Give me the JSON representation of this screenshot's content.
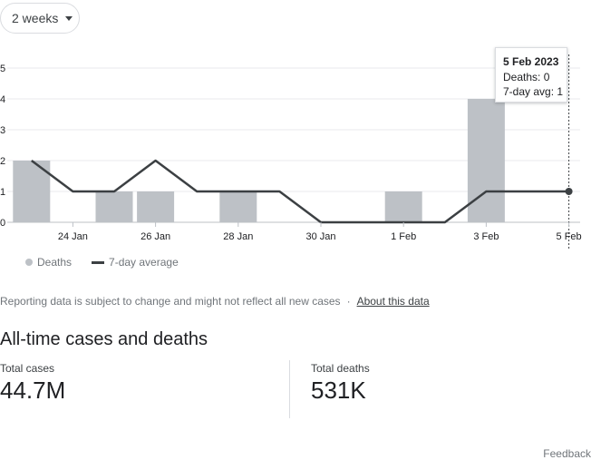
{
  "range_selector": {
    "label": "2 weeks"
  },
  "tooltip": {
    "date": "5 Feb 2023",
    "deaths": "Deaths: 0",
    "avg": "7-day avg: 1"
  },
  "legend": {
    "bars_label": "Deaths",
    "line_label": "7-day average"
  },
  "note": {
    "text": "Reporting data is subject to change and might not reflect all new cases",
    "separator": "·",
    "link": "About this data"
  },
  "totals": {
    "title": "All-time cases and deaths",
    "cases_label": "Total cases",
    "cases_value": "44.7M",
    "deaths_label": "Total deaths",
    "deaths_value": "531K"
  },
  "feedback": "Feedback",
  "chart_data": {
    "type": "bar",
    "categories": [
      "23 Jan",
      "24 Jan",
      "25 Jan",
      "26 Jan",
      "27 Jan",
      "28 Jan",
      "29 Jan",
      "30 Jan",
      "31 Jan",
      "1 Feb",
      "2 Feb",
      "3 Feb",
      "4 Feb",
      "5 Feb"
    ],
    "x_tick_labels": [
      "24 Jan",
      "26 Jan",
      "28 Jan",
      "30 Jan",
      "1 Feb",
      "3 Feb",
      "5 Feb"
    ],
    "y_ticks": [
      0,
      1,
      2,
      3,
      4,
      5
    ],
    "ylim": [
      0,
      5
    ],
    "grid": true,
    "series": [
      {
        "name": "Deaths",
        "kind": "bar",
        "color": "#bdc1c6",
        "values": [
          2,
          0,
          1,
          1,
          0,
          1,
          0,
          0,
          0,
          1,
          0,
          4,
          0,
          0
        ]
      },
      {
        "name": "7-day average",
        "kind": "line",
        "color": "#3c4043",
        "values": [
          2,
          1,
          1,
          2,
          1,
          1,
          1,
          0,
          0,
          0,
          0,
          1,
          1,
          1
        ]
      }
    ],
    "highlight_index": 13
  }
}
